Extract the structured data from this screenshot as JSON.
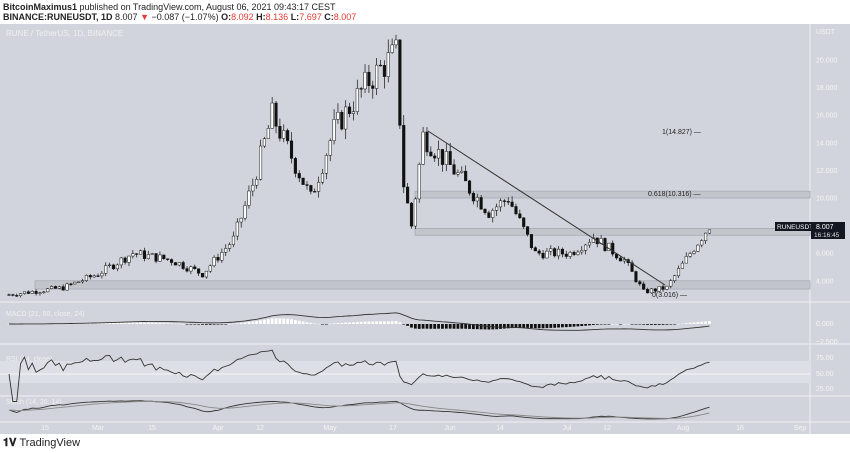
{
  "header": {
    "author": "BitcoinMaximus1",
    "published": "published on TradingView.com, August 06, 2021 09:43:17 CEST",
    "symbol": "BINANCE:RUNEUSDT, 1D",
    "last": "8.007",
    "change": "−0.087 (−1.07%)",
    "o": "8.092",
    "h": "8.136",
    "l": "7.697",
    "c": "8.007"
  },
  "chart_title": "RUNE / TetherUS, 1D, BINANCE",
  "currency": "USDT",
  "price_ticks": [
    "20.000",
    "18.000",
    "16.000",
    "14.000",
    "12.000",
    "10.000",
    "6.000",
    "4.000"
  ],
  "price_label": {
    "symbol": "RUNEUSDT",
    "price": "8.007",
    "countdown": "16:16:45"
  },
  "fib": [
    {
      "label": "1(14.827)",
      "value": 14.827
    },
    {
      "label": "0.618(10.316)",
      "value": 10.316
    },
    {
      "label": "0(3.016)",
      "value": 3.016
    }
  ],
  "macd": {
    "title": "MACD (21, 50, close, 24)",
    "ticks": [
      "0.000",
      "−2.500"
    ]
  },
  "rsi": {
    "title": "RSI (14, close)",
    "ticks": [
      "75.00",
      "50.00",
      "25.00"
    ]
  },
  "stoch": {
    "title": "Stoch (14, 26, 14)"
  },
  "time_ticks": [
    "15",
    "Mar",
    "15",
    "Apr",
    "12",
    "May",
    "17",
    "Jun",
    "14",
    "Jul",
    "12",
    "Aug",
    "16",
    "Sep"
  ],
  "footer": "TradingView",
  "chart_data": {
    "type": "candlestick",
    "ylim": [
      2,
      21
    ],
    "keypoints": [
      [
        0,
        3.0
      ],
      [
        14,
        3.5
      ],
      [
        23,
        4.5
      ],
      [
        32,
        6.0
      ],
      [
        42,
        5.5
      ],
      [
        50,
        4.5
      ],
      [
        58,
        7
      ],
      [
        63,
        11
      ],
      [
        68,
        16
      ],
      [
        73,
        13
      ],
      [
        78,
        10
      ],
      [
        84,
        15
      ],
      [
        93,
        18.5
      ],
      [
        100,
        20.5
      ],
      [
        102,
        11
      ],
      [
        104,
        8
      ],
      [
        107,
        14.5
      ],
      [
        115,
        12
      ],
      [
        124,
        9
      ],
      [
        129,
        10
      ],
      [
        136,
        6
      ],
      [
        145,
        6
      ],
      [
        151,
        7.2
      ],
      [
        159,
        5.5
      ],
      [
        164,
        3.2
      ],
      [
        170,
        3.5
      ],
      [
        176,
        6
      ],
      [
        181,
        8.0
      ]
    ]
  }
}
